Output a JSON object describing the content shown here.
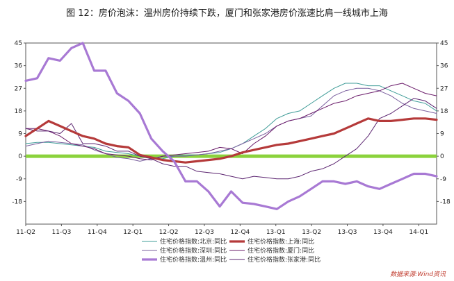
{
  "chart_data": {
    "type": "line",
    "title": "图 12：房价泡沫：温州房价持续下跌，厦门和张家港房价涨速比肩一线城市上海",
    "xlabel": "",
    "ylabel": "",
    "ylim": [
      -27,
      45
    ],
    "yticks": [
      45,
      36,
      27,
      18,
      9,
      0,
      -9,
      -18
    ],
    "x_labels": [
      "11-Q2",
      "11-Q3",
      "11-Q4",
      "12-Q1",
      "12-Q2",
      "12-Q3",
      "12-Q4",
      "13-Q1",
      "13-Q2",
      "13-Q3",
      "13-Q4",
      "14-Q1"
    ],
    "n_points": 37,
    "grid": false,
    "zero_line_color": "#8bd23c",
    "series": [
      {
        "name": "住宅价格指数:北京:同比",
        "color": "#3f9c98",
        "width": 1,
        "values": [
          5,
          5.5,
          5.5,
          5,
          4.5,
          4,
          3.5,
          2,
          1.5,
          1,
          0,
          -1,
          -1,
          0,
          0.5,
          0.5,
          1,
          1.5,
          3,
          5,
          8,
          11,
          15,
          17,
          18,
          21,
          24,
          27,
          29,
          29,
          28,
          28,
          26,
          24,
          22,
          21,
          18
        ]
      },
      {
        "name": "住宅价格指数:上海:同比",
        "color": "#b53a3a",
        "width": 3.2,
        "values": [
          8,
          11,
          14,
          12,
          10,
          8,
          7,
          5,
          4,
          3.5,
          0.5,
          -0.5,
          -1.5,
          -2,
          -2.5,
          -2,
          -1.5,
          -1,
          0,
          1.5,
          2.5,
          3.5,
          4.5,
          5,
          6,
          7,
          8,
          9,
          11,
          13,
          15,
          14,
          14,
          14.5,
          15,
          15,
          14.5
        ]
      },
      {
        "name": "住宅价格指数:深圳:同比",
        "color": "#7a5f9e",
        "width": 1,
        "values": [
          4,
          5,
          6,
          5.5,
          5,
          4.5,
          2.5,
          1,
          -0.5,
          -1,
          -2,
          -1,
          0,
          0,
          0,
          0.5,
          1,
          2,
          3,
          5,
          7,
          9,
          12,
          14,
          15,
          16,
          20,
          24,
          26,
          27,
          27,
          26,
          24,
          21,
          19,
          18,
          17
        ]
      },
      {
        "name": "住宅价格指数:厦门:同比",
        "color": "#6a1b6a",
        "width": 1,
        "values": [
          11,
          11,
          10,
          8,
          5,
          4,
          3,
          1,
          0.5,
          0,
          -1,
          -1.5,
          0,
          0.5,
          1,
          1.5,
          2,
          3.5,
          3,
          1,
          5,
          8,
          12,
          14,
          15,
          17,
          19,
          21,
          22,
          24,
          25,
          26,
          28,
          29,
          27,
          25,
          24
        ]
      },
      {
        "name": "住宅价格指数:温州:同比",
        "color": "#a879d4",
        "width": 3.2,
        "values": [
          30,
          31,
          39,
          38,
          43,
          45,
          34,
          34,
          25,
          22,
          17,
          7,
          2,
          -2,
          -10,
          -10,
          -14,
          -20,
          -14,
          -18.5,
          -19,
          -20,
          -21,
          -18,
          -16,
          -13,
          -10,
          -10,
          -11,
          -10,
          -12,
          -13,
          -11,
          -9,
          -7,
          -7,
          -8
        ]
      },
      {
        "name": "住宅价格指数:张家港:同比",
        "color": "#5b2470",
        "width": 1,
        "values": [
          11,
          10,
          10,
          9,
          13,
          5,
          5,
          4,
          2,
          2,
          0,
          -1,
          -3,
          -4,
          -4,
          -6,
          -6.5,
          -7,
          -8,
          -9,
          -8,
          -8.5,
          -9,
          -9,
          -8,
          -6,
          -5,
          -3,
          0,
          3,
          8,
          15,
          17,
          20,
          23,
          22,
          19
        ]
      }
    ],
    "legend": {
      "placement": "bottom"
    }
  },
  "source": "数据来源:Wind资讯"
}
